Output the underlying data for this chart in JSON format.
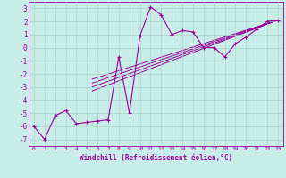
{
  "xlabel": "Windchill (Refroidissement éolien,°C)",
  "bg_color": "#c8ece8",
  "line_color": "#990099",
  "grid_color": "#aad4cc",
  "x_main": [
    0,
    1,
    2,
    3,
    4,
    5,
    6,
    7,
    8,
    9,
    10,
    11,
    12,
    13,
    14,
    15,
    16,
    17,
    18,
    19,
    20,
    21,
    22,
    23
  ],
  "y_main": [
    -6.0,
    -7.0,
    -5.2,
    -4.8,
    -5.8,
    -5.7,
    -5.6,
    -5.5,
    -0.7,
    -5.0,
    0.9,
    3.1,
    2.5,
    1.0,
    1.3,
    1.2,
    0.0,
    0.0,
    -0.7,
    0.3,
    0.8,
    1.4,
    2.0,
    2.1
  ],
  "straight_lines": [
    {
      "x": [
        5.5,
        23
      ],
      "y": [
        -3.3,
        2.1
      ]
    },
    {
      "x": [
        5.5,
        23
      ],
      "y": [
        -3.0,
        2.1
      ]
    },
    {
      "x": [
        5.5,
        23
      ],
      "y": [
        -2.7,
        2.1
      ]
    },
    {
      "x": [
        5.5,
        23
      ],
      "y": [
        -2.4,
        2.1
      ]
    }
  ],
  "xlim": [
    0,
    23
  ],
  "ylim": [
    -7.5,
    3.5
  ],
  "yticks": [
    -7,
    -6,
    -5,
    -4,
    -3,
    -2,
    -1,
    0,
    1,
    2,
    3
  ],
  "xticks": [
    0,
    1,
    2,
    3,
    4,
    5,
    6,
    7,
    8,
    9,
    10,
    11,
    12,
    13,
    14,
    15,
    16,
    17,
    18,
    19,
    20,
    21,
    22,
    23
  ]
}
